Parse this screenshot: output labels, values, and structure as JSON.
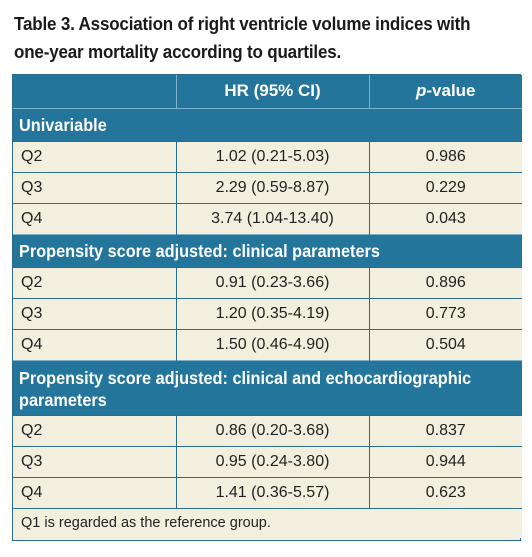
{
  "title": {
    "line1": "Table 3. Association of right ventricle volume indices with",
    "line2": "one-year mortality according to quartiles."
  },
  "header": {
    "col1": "",
    "col2": "HR (95% CI)",
    "col3_italic": "p",
    "col3_rest": "-value"
  },
  "sections": [
    {
      "label": "Univariable",
      "rows": [
        {
          "q": "Q2",
          "hr": "1.02 (0.21-5.03)",
          "p": "0.986"
        },
        {
          "q": "Q3",
          "hr": "2.29 (0.59-8.87)",
          "p": "0.229"
        },
        {
          "q": "Q4",
          "hr": "3.74 (1.04-13.40)",
          "p": "0.043"
        }
      ]
    },
    {
      "label": "Propensity score adjusted: clinical parameters",
      "rows": [
        {
          "q": "Q2",
          "hr": "0.91 (0.23-3.66)",
          "p": "0.896"
        },
        {
          "q": "Q3",
          "hr": "1.20 (0.35-4.19)",
          "p": "0.773"
        },
        {
          "q": "Q4",
          "hr": "1.50 (0.46-4.90)",
          "p": "0.504"
        }
      ]
    },
    {
      "label_line1": "Propensity score adjusted: clinical and echocardiographic",
      "label_line2": "parameters",
      "rows": [
        {
          "q": "Q2",
          "hr": "0.86 (0.20-3.68)",
          "p": "0.837"
        },
        {
          "q": "Q3",
          "hr": "0.95 (0.24-3.80)",
          "p": "0.944"
        },
        {
          "q": "Q4",
          "hr": "1.41 (0.36-5.57)",
          "p": "0.623"
        }
      ]
    }
  ],
  "footnote": "Q1 is regarded as the reference group.",
  "colors": {
    "header_bg": "#23759b",
    "row_bg": "#f3efdf",
    "border": "#2b6b8c"
  }
}
